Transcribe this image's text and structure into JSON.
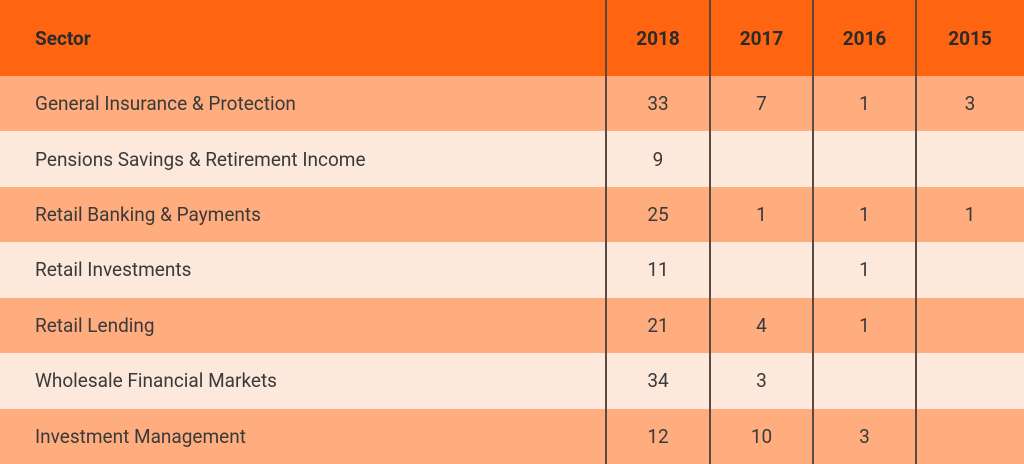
{
  "table": {
    "header": [
      "Sector",
      "2018",
      "2017",
      "2016",
      "2015"
    ],
    "rows": [
      [
        "General Insurance & Protection",
        33,
        7,
        1,
        3
      ],
      [
        "Pensions Savings & Retirement Income",
        9,
        null,
        null,
        null
      ],
      [
        "Retail Banking & Payments",
        25,
        1,
        1,
        1
      ],
      [
        "Retail Investments",
        11,
        null,
        1,
        null
      ],
      [
        "Retail Lending",
        21,
        4,
        1,
        null
      ],
      [
        "Wholesale Financial Markets",
        34,
        3,
        null,
        null
      ],
      [
        "Investment Management",
        12,
        10,
        3,
        null
      ]
    ]
  }
}
